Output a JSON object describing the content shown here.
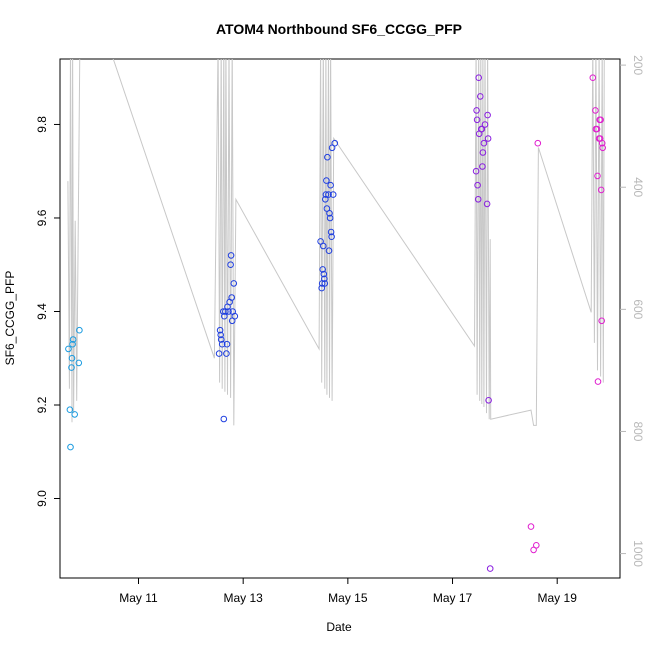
{
  "chart_data": {
    "type": "scatter",
    "title": "ATOM4 Northbound SF6_CCGG_PFP",
    "xlabel": "Date",
    "ylabel": "SF6_CCGG_PFP",
    "x_ticks": [
      {
        "day": 11,
        "label": "May 11"
      },
      {
        "day": 13,
        "label": "May 13"
      },
      {
        "day": 15,
        "label": "May 15"
      },
      {
        "day": 17,
        "label": "May 17"
      },
      {
        "day": 19,
        "label": "May 19"
      }
    ],
    "xlim": [
      9.5,
      20.2
    ],
    "ylim": [
      8.83,
      9.94
    ],
    "y_ticks": [
      "9.0",
      "9.2",
      "9.4",
      "9.6",
      "9.8"
    ],
    "y2_ticks": [
      "200",
      "400",
      "600",
      "800",
      "1000"
    ],
    "y2lim": [
      1040,
      190
    ],
    "grid": false,
    "legend": "none",
    "colors": {
      "points_early": "#1a9be0",
      "points_mid": "#1f3fe0",
      "points_late": "#8a1fe0",
      "points_last": "#e01fcf",
      "altitude_line": "#c8c8c8",
      "right_axis": "#b8b8b8"
    },
    "series": [
      {
        "color_key": "points_early",
        "points": [
          [
            9.66,
            9.32
          ],
          [
            9.69,
            9.19
          ],
          [
            9.7,
            9.11
          ],
          [
            9.72,
            9.28
          ],
          [
            9.73,
            9.3
          ],
          [
            9.74,
            9.33
          ],
          [
            9.75,
            9.34
          ],
          [
            9.78,
            9.18
          ],
          [
            9.86,
            9.29
          ],
          [
            9.87,
            9.36
          ]
        ]
      },
      {
        "color_key": "points_mid",
        "points": [
          [
            12.54,
            9.31
          ],
          [
            12.56,
            9.36
          ],
          [
            12.57,
            9.35
          ],
          [
            12.58,
            9.34
          ],
          [
            12.6,
            9.33
          ],
          [
            12.62,
            9.4
          ],
          [
            12.63,
            9.17
          ],
          [
            12.64,
            9.39
          ],
          [
            12.66,
            9.4
          ],
          [
            12.68,
            9.31
          ],
          [
            12.69,
            9.33
          ],
          [
            12.7,
            9.41
          ],
          [
            12.72,
            9.4
          ],
          [
            12.74,
            9.42
          ],
          [
            12.76,
            9.5
          ],
          [
            12.77,
            9.52
          ],
          [
            12.78,
            9.43
          ],
          [
            12.79,
            9.38
          ],
          [
            12.8,
            9.4
          ],
          [
            12.82,
            9.46
          ],
          [
            12.84,
            9.39
          ],
          [
            14.48,
            9.55
          ],
          [
            14.5,
            9.45
          ],
          [
            14.51,
            9.46
          ],
          [
            14.52,
            9.49
          ],
          [
            14.53,
            9.54
          ],
          [
            14.54,
            9.48
          ],
          [
            14.55,
            9.47
          ],
          [
            14.56,
            9.46
          ],
          [
            14.57,
            9.64
          ],
          [
            14.58,
            9.65
          ],
          [
            14.59,
            9.68
          ],
          [
            14.6,
            9.62
          ],
          [
            14.61,
            9.73
          ],
          [
            14.63,
            9.65
          ],
          [
            14.64,
            9.53
          ],
          [
            14.65,
            9.61
          ],
          [
            14.66,
            9.6
          ],
          [
            14.67,
            9.67
          ],
          [
            14.68,
            9.57
          ],
          [
            14.69,
            9.56
          ],
          [
            14.7,
            9.75
          ],
          [
            14.72,
            9.65
          ],
          [
            14.75,
            9.76
          ]
        ]
      },
      {
        "color_key": "points_late",
        "points": [
          [
            17.45,
            9.7
          ],
          [
            17.46,
            9.83
          ],
          [
            17.47,
            9.81
          ],
          [
            17.48,
            9.67
          ],
          [
            17.49,
            9.64
          ],
          [
            17.5,
            9.9
          ],
          [
            17.51,
            9.78
          ],
          [
            17.53,
            9.86
          ],
          [
            17.55,
            9.79
          ],
          [
            17.56,
            9.79
          ],
          [
            17.57,
            9.71
          ],
          [
            17.58,
            9.74
          ],
          [
            17.6,
            9.76
          ],
          [
            17.62,
            9.8
          ],
          [
            17.66,
            9.63
          ],
          [
            17.67,
            9.82
          ],
          [
            17.68,
            9.77
          ],
          [
            17.69,
            9.21
          ],
          [
            17.72,
            8.85
          ]
        ]
      },
      {
        "color_key": "points_last",
        "points": [
          [
            18.5,
            8.94
          ],
          [
            18.55,
            8.89
          ],
          [
            18.6,
            8.9
          ],
          [
            18.63,
            9.76
          ],
          [
            19.68,
            9.9
          ],
          [
            19.73,
            9.83
          ],
          [
            19.74,
            9.79
          ],
          [
            19.76,
            9.79
          ],
          [
            19.77,
            9.69
          ],
          [
            19.78,
            9.25
          ],
          [
            19.8,
            9.77
          ],
          [
            19.81,
            9.81
          ],
          [
            19.82,
            9.77
          ],
          [
            19.83,
            9.81
          ],
          [
            19.84,
            9.66
          ],
          [
            19.85,
            9.38
          ],
          [
            19.86,
            9.76
          ],
          [
            19.87,
            9.75
          ]
        ]
      }
    ],
    "altitude_line": [
      [
        9.65,
        390
      ],
      [
        9.68,
        730
      ],
      [
        9.7,
        160
      ],
      [
        9.73,
        785
      ],
      [
        9.74,
        160
      ],
      [
        9.76,
        770
      ],
      [
        9.79,
        455
      ],
      [
        9.82,
        750
      ],
      [
        9.88,
        160
      ],
      [
        9.93,
        160
      ],
      [
        10.4,
        160
      ],
      [
        12.45,
        680
      ],
      [
        12.52,
        160
      ],
      [
        12.55,
        720
      ],
      [
        12.58,
        160
      ],
      [
        12.6,
        730
      ],
      [
        12.63,
        160
      ],
      [
        12.65,
        735
      ],
      [
        12.67,
        160
      ],
      [
        12.7,
        740
      ],
      [
        12.73,
        160
      ],
      [
        12.76,
        745
      ],
      [
        12.79,
        160
      ],
      [
        12.82,
        790
      ],
      [
        12.86,
        420
      ],
      [
        14.45,
        665
      ],
      [
        14.48,
        160
      ],
      [
        14.5,
        720
      ],
      [
        14.53,
        160
      ],
      [
        14.56,
        730
      ],
      [
        14.58,
        160
      ],
      [
        14.6,
        740
      ],
      [
        14.63,
        160
      ],
      [
        14.65,
        745
      ],
      [
        14.67,
        160
      ],
      [
        14.7,
        750
      ],
      [
        14.73,
        320
      ],
      [
        17.42,
        660
      ],
      [
        17.45,
        160
      ],
      [
        17.47,
        740
      ],
      [
        17.5,
        160
      ],
      [
        17.52,
        750
      ],
      [
        17.54,
        160
      ],
      [
        17.56,
        755
      ],
      [
        17.58,
        160
      ],
      [
        17.6,
        760
      ],
      [
        17.62,
        160
      ],
      [
        17.65,
        770
      ],
      [
        17.67,
        160
      ],
      [
        17.7,
        780
      ],
      [
        17.72,
        485
      ],
      [
        17.73,
        780
      ],
      [
        18.5,
        765
      ],
      [
        18.55,
        790
      ],
      [
        18.6,
        790
      ],
      [
        18.64,
        335
      ],
      [
        19.65,
        605
      ],
      [
        19.68,
        160
      ],
      [
        19.71,
        655
      ],
      [
        19.74,
        160
      ],
      [
        19.77,
        700
      ],
      [
        19.8,
        160
      ],
      [
        19.83,
        710
      ],
      [
        19.86,
        160
      ],
      [
        19.88,
        720
      ],
      [
        19.9,
        160
      ]
    ]
  }
}
